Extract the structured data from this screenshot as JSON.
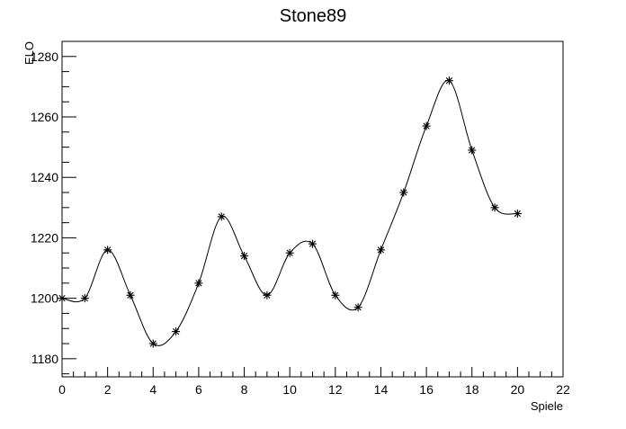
{
  "chart_data": {
    "type": "line",
    "title": "Stone89",
    "xlabel": "Spiele",
    "ylabel": "ELO",
    "x": [
      0,
      1,
      2,
      3,
      4,
      5,
      6,
      7,
      8,
      9,
      10,
      11,
      12,
      13,
      14,
      15,
      16,
      17,
      18,
      19,
      20
    ],
    "series": [
      {
        "values": [
          1200,
          1200,
          1216,
          1201,
          1185,
          1189,
          1205,
          1227,
          1214,
          1201,
          1215,
          1218,
          1201,
          1197,
          1216,
          1235,
          1257,
          1272,
          1249,
          1230,
          1228
        ],
        "color": "#000000",
        "marker": "asterisk",
        "line": "smooth"
      }
    ],
    "xlim": [
      0,
      22
    ],
    "ylim": [
      1174,
      1285
    ],
    "x_ticks": [
      "0",
      "2",
      "4",
      "6",
      "8",
      "10",
      "12",
      "14",
      "16",
      "18",
      "20",
      "22"
    ],
    "y_ticks": [
      "1180",
      "1200",
      "1220",
      "1240",
      "1260",
      "1280"
    ],
    "grid": false,
    "legend": "none"
  }
}
